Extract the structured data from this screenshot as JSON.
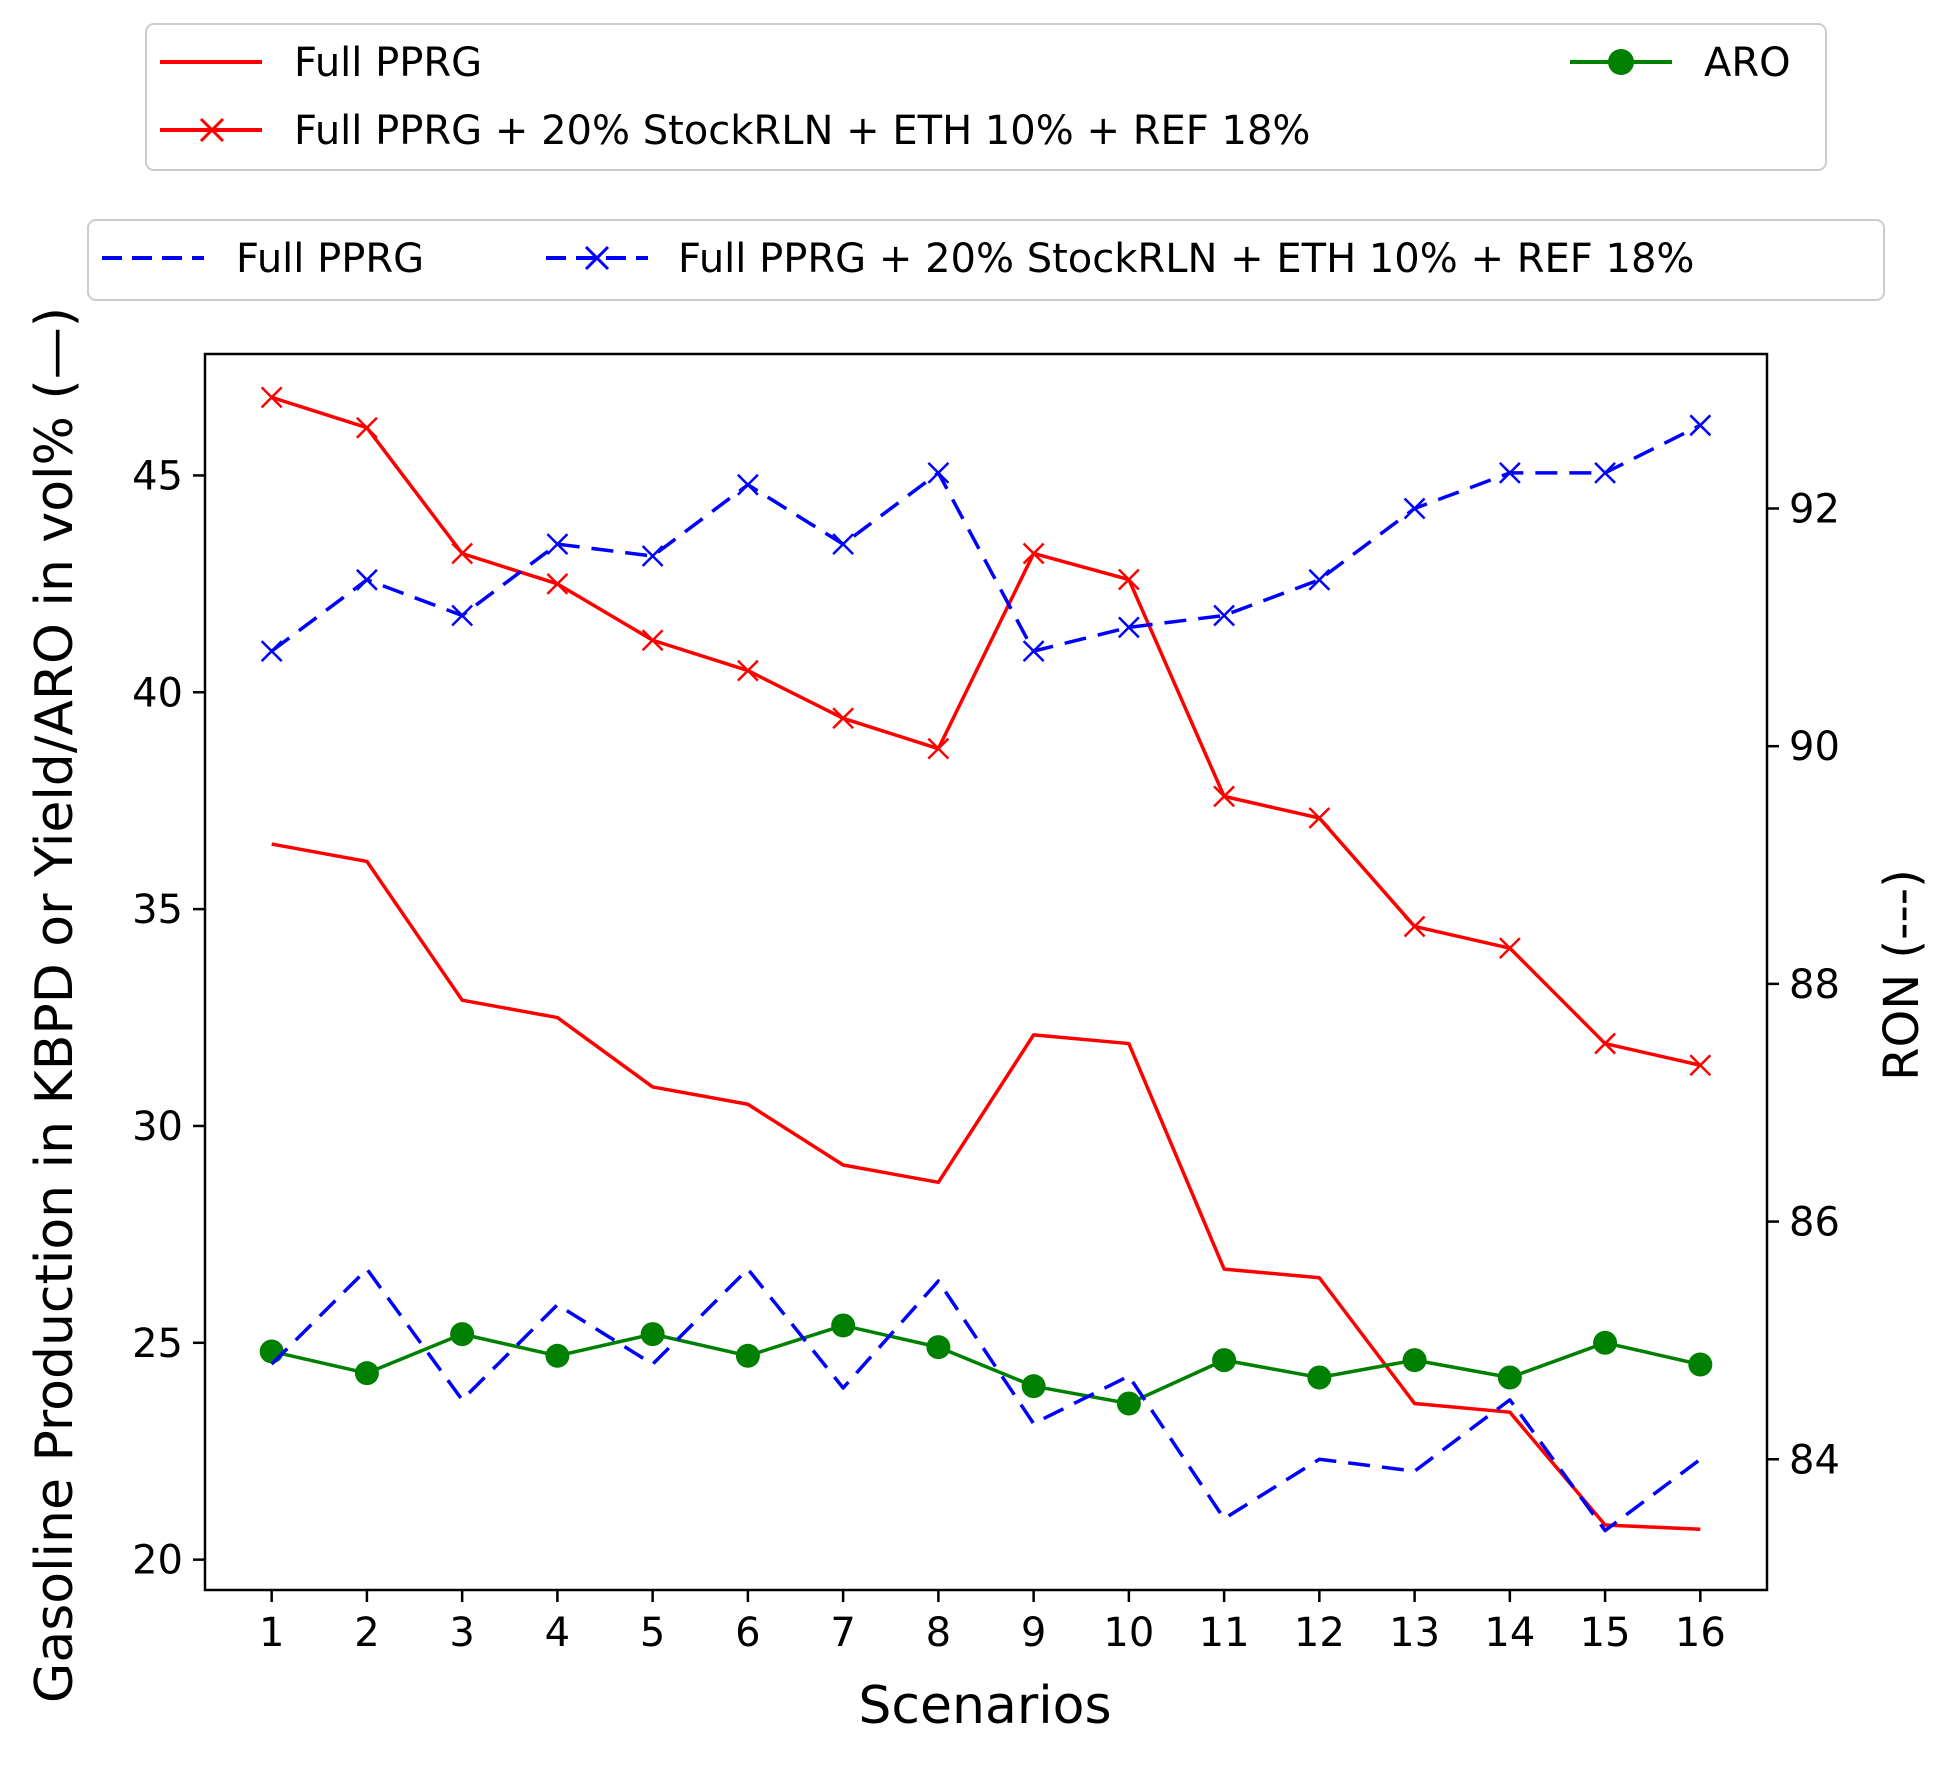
{
  "chart_data": {
    "type": "line",
    "xlabel": "Scenarios",
    "ylabel_left": "Gasoline Production in KBPD or Yield/ARO in vol% (—)",
    "ylabel_right": "RON (---)",
    "x": [
      1,
      2,
      3,
      4,
      5,
      6,
      7,
      8,
      9,
      10,
      11,
      12,
      13,
      14,
      15,
      16
    ],
    "xlim": [
      0.3,
      16.7
    ],
    "ylim_left": [
      19.3,
      47.8
    ],
    "ylim_right": [
      82.9,
      93.3
    ],
    "left_ticks": [
      20,
      25,
      30,
      35,
      40,
      45
    ],
    "right_ticks": [
      84,
      86,
      88,
      90,
      92
    ],
    "series": [
      {
        "name": "Full PPRG",
        "axis": "left",
        "color": "#ff0000",
        "style": "solid",
        "marker": "none",
        "values": [
          36.5,
          36.1,
          32.9,
          32.5,
          30.9,
          30.5,
          29.1,
          28.7,
          32.1,
          31.9,
          26.7,
          26.5,
          23.6,
          23.4,
          20.8,
          20.7
        ]
      },
      {
        "name": "Full PPRG + 20% StockRLN + ETH 10% + REF 18%",
        "axis": "left",
        "color": "#ff0000",
        "style": "solid",
        "marker": "x",
        "values": [
          46.8,
          46.1,
          43.2,
          42.5,
          41.2,
          40.5,
          39.4,
          38.7,
          43.2,
          42.6,
          37.6,
          37.1,
          34.6,
          34.1,
          31.9,
          31.4
        ]
      },
      {
        "name": "ARO",
        "axis": "left",
        "color": "#008000",
        "style": "solid",
        "marker": "o",
        "values": [
          24.8,
          24.3,
          25.2,
          24.7,
          25.2,
          24.7,
          25.4,
          24.9,
          24.0,
          23.6,
          24.6,
          24.2,
          24.6,
          24.2,
          25.0,
          24.5
        ]
      },
      {
        "name": "Full PPRG",
        "axis": "right",
        "color": "#0000ff",
        "style": "dashed",
        "marker": "none",
        "values": [
          84.8,
          85.6,
          84.5,
          85.3,
          84.8,
          85.6,
          84.6,
          85.5,
          84.3,
          84.7,
          83.5,
          84.0,
          83.9,
          84.5,
          83.4,
          84.0
        ]
      },
      {
        "name": "Full PPRG + 20% StockRLN + ETH 10% + REF 18%",
        "axis": "right",
        "color": "#0000ff",
        "style": "dashed",
        "marker": "x",
        "values": [
          90.8,
          91.4,
          91.1,
          91.7,
          91.6,
          92.2,
          91.7,
          92.3,
          90.8,
          91.0,
          91.1,
          91.4,
          92.0,
          92.3,
          92.3,
          92.7
        ]
      }
    ],
    "legend_top": {
      "placement": "top",
      "entries": [
        {
          "label": "Full PPRG",
          "color": "#ff0000",
          "style": "solid",
          "marker": "none"
        },
        {
          "label": "ARO",
          "color": "#008000",
          "style": "solid",
          "marker": "o"
        },
        {
          "label": "Full PPRG + 20% StockRLN + ETH 10% + REF 18%",
          "color": "#ff0000",
          "style": "solid",
          "marker": "x"
        }
      ]
    },
    "legend_bottom": {
      "placement": "top",
      "entries": [
        {
          "label": "Full PPRG",
          "color": "#0000ff",
          "style": "dashed",
          "marker": "none"
        },
        {
          "label": "Full PPRG + 20% StockRLN + ETH 10% + REF 18%",
          "color": "#0000ff",
          "style": "dashed",
          "marker": "x"
        }
      ]
    },
    "grid": false
  }
}
